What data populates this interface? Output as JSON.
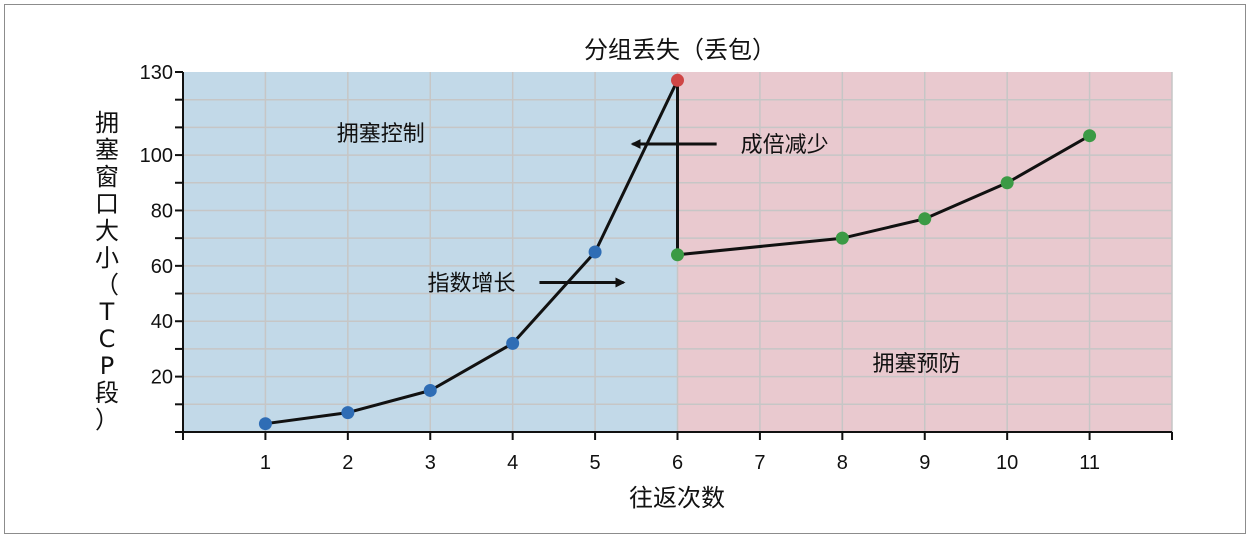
{
  "chart_data": {
    "type": "line",
    "title": "分组丢失（丢包）",
    "xlabel": "往返次数",
    "ylabel": "拥塞窗口大小（TCP段）",
    "ylim": [
      0,
      130
    ],
    "xlim": [
      0,
      12
    ],
    "x_ticks": [
      "1",
      "2",
      "3",
      "4",
      "5",
      "6",
      "7",
      "8",
      "9",
      "10",
      "11"
    ],
    "y_ticks": [
      "20",
      "40",
      "60",
      "80",
      "100",
      "130"
    ],
    "grid": true,
    "regions": [
      {
        "label": "拥塞控制",
        "color": "#c2d9e8",
        "x_from": 0,
        "x_to": 6
      },
      {
        "label": "拥塞预防",
        "color": "#e9c9cf",
        "x_from": 6,
        "x_to": 12
      }
    ],
    "series": [
      {
        "points": [
          {
            "x": 1,
            "y": 3,
            "color": "#2f6db5"
          },
          {
            "x": 2,
            "y": 7,
            "color": "#2f6db5"
          },
          {
            "x": 3,
            "y": 15,
            "color": "#2f6db5"
          },
          {
            "x": 4,
            "y": 32,
            "color": "#2f6db5"
          },
          {
            "x": 5,
            "y": 65,
            "color": "#2f6db5"
          },
          {
            "x": 6,
            "y": 127,
            "color": "#cf4545"
          },
          {
            "x": 6,
            "y": 64,
            "color": "#3b9a45"
          },
          {
            "x": 8,
            "y": 70,
            "color": "#3b9a45"
          },
          {
            "x": 9,
            "y": 77,
            "color": "#3b9a45"
          },
          {
            "x": 10,
            "y": 90,
            "color": "#3b9a45"
          },
          {
            "x": 11,
            "y": 107,
            "color": "#3b9a45"
          }
        ]
      }
    ],
    "annotations": [
      {
        "text": "指数增长",
        "x": 3.5,
        "y": 54,
        "arrow": "right"
      },
      {
        "text": "成倍减少",
        "x": 7.3,
        "y": 104,
        "arrow": "left"
      }
    ]
  }
}
